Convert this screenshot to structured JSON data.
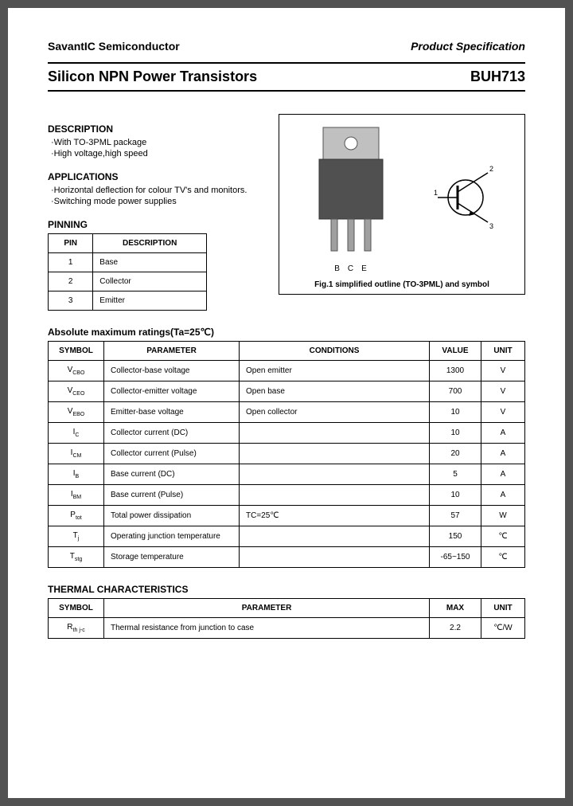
{
  "header": {
    "company": "SavantIC Semiconductor",
    "docType": "Product Specification"
  },
  "title": {
    "left": "Silicon NPN Power Transistors",
    "right": "BUH713"
  },
  "description": {
    "heading": "DESCRIPTION",
    "items": [
      "·With TO-3PML package",
      "·High voltage,high speed"
    ]
  },
  "applications": {
    "heading": "APPLICATIONS",
    "items": [
      "·Horizontal deflection for colour TV's and monitors.",
      "·Switching mode power supplies"
    ]
  },
  "pinning": {
    "heading": "PINNING",
    "columns": [
      "PIN",
      "DESCRIPTION"
    ],
    "rows": [
      [
        "1",
        "Base"
      ],
      [
        "2",
        "Collector"
      ],
      [
        "3",
        "Emitter"
      ]
    ]
  },
  "figure": {
    "pinLabels": [
      "B",
      "C",
      "E"
    ],
    "symbolPins": [
      "1",
      "2",
      "3"
    ],
    "caption": "Fig.1 simplified outline (TO-3PML) and symbol"
  },
  "ratings": {
    "heading": "Absolute maximum ratings(Ta=25℃)",
    "columns": [
      "SYMBOL",
      "PARAMETER",
      "CONDITIONS",
      "VALUE",
      "UNIT"
    ],
    "rows": [
      {
        "sym": "V",
        "sub": "CBO",
        "param": "Collector-base voltage",
        "cond": "Open emitter",
        "val": "1300",
        "unit": "V"
      },
      {
        "sym": "V",
        "sub": "CEO",
        "param": "Collector-emitter voltage",
        "cond": "Open base",
        "val": "700",
        "unit": "V"
      },
      {
        "sym": "V",
        "sub": "EBO",
        "param": "Emitter-base voltage",
        "cond": "Open collector",
        "val": "10",
        "unit": "V"
      },
      {
        "sym": "I",
        "sub": "C",
        "param": "Collector current (DC)",
        "cond": "",
        "val": "10",
        "unit": "A"
      },
      {
        "sym": "I",
        "sub": "CM",
        "param": "Collector current (Pulse)",
        "cond": "",
        "val": "20",
        "unit": "A"
      },
      {
        "sym": "I",
        "sub": "B",
        "param": "Base current (DC)",
        "cond": "",
        "val": "5",
        "unit": "A"
      },
      {
        "sym": "I",
        "sub": "BM",
        "param": "Base current (Pulse)",
        "cond": "",
        "val": "10",
        "unit": "A"
      },
      {
        "sym": "P",
        "sub": "tot",
        "param": "Total power dissipation",
        "cond": "TC=25℃",
        "val": "57",
        "unit": "W"
      },
      {
        "sym": "T",
        "sub": "j",
        "param": "Operating junction temperature",
        "cond": "",
        "val": "150",
        "unit": "℃"
      },
      {
        "sym": "T",
        "sub": "stg",
        "param": "Storage temperature",
        "cond": "",
        "val": "-65~150",
        "unit": "℃"
      }
    ]
  },
  "thermal": {
    "heading": "THERMAL CHARACTERISTICS",
    "columns": [
      "SYMBOL",
      "PARAMETER",
      "MAX",
      "UNIT"
    ],
    "rows": [
      {
        "sym": "R",
        "sub": "th j-c",
        "param": "Thermal resistance from junction to case",
        "max": "2.2",
        "unit": "℃/W"
      }
    ]
  }
}
